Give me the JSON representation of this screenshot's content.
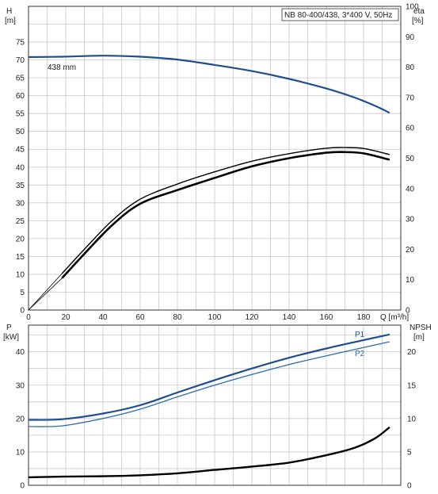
{
  "chart_data": [
    {
      "type": "line",
      "panel": "top",
      "title": "NB 80-400/438, 3*400 V, 50Hz",
      "ylabel_left": "H",
      "ylabel_left_unit": "[m]",
      "ylabel_right": "eta",
      "ylabel_right_unit": "[%]",
      "xlabel": "Q [m³/h]",
      "xlim": [
        0,
        200
      ],
      "ylim_left": [
        0,
        85
      ],
      "ylim_right": [
        0,
        100
      ],
      "x_ticks": [
        0,
        20,
        40,
        60,
        80,
        100,
        120,
        140,
        160,
        180
      ],
      "y_ticks_left": [
        0,
        5,
        10,
        15,
        20,
        25,
        30,
        35,
        40,
        45,
        50,
        55,
        60,
        65,
        70,
        75
      ],
      "y_ticks_right": [
        0,
        10,
        20,
        30,
        40,
        50,
        60,
        70,
        80,
        90,
        100
      ],
      "grid": true,
      "annotation": "438 mm",
      "series": [
        {
          "role": "head",
          "axis": "left",
          "color": "#1f4e8c",
          "x": [
            0,
            18,
            40,
            60,
            80,
            100,
            120,
            140,
            160,
            175,
            186,
            194
          ],
          "y": [
            70.8,
            70.9,
            71.2,
            70.9,
            70.1,
            68.6,
            66.9,
            64.7,
            62.0,
            59.5,
            57.2,
            55.2
          ]
        },
        {
          "role": "efficiency",
          "axis": "right",
          "color": "#000000",
          "x": [
            18,
            30,
            45,
            60,
            80,
            100,
            120,
            140,
            160,
            170,
            180,
            194
          ],
          "y": [
            10.5,
            18.5,
            28.0,
            35.0,
            39.5,
            43.5,
            47.3,
            50.0,
            51.8,
            52.0,
            51.6,
            49.5
          ]
        },
        {
          "role": "efficiency",
          "axis": "right",
          "color": "#000000",
          "x": [
            18,
            30,
            45,
            60,
            80,
            100,
            120,
            140,
            160,
            170,
            180,
            194
          ],
          "y": [
            12.0,
            20.0,
            29.5,
            36.5,
            41.5,
            45.5,
            49.0,
            51.5,
            53.3,
            53.5,
            53.2,
            51.2
          ]
        }
      ]
    },
    {
      "type": "line",
      "panel": "bottom",
      "ylabel_left": "P",
      "ylabel_left_unit": "[kW]",
      "ylabel_right": "NPSH",
      "ylabel_right_unit": "[m]",
      "xlim": [
        0,
        200
      ],
      "ylim_left": [
        0,
        48
      ],
      "ylim_right": [
        0,
        24
      ],
      "y_ticks_left": [
        0,
        10,
        20,
        30,
        40
      ],
      "y_ticks_right": [
        0,
        5,
        10,
        15,
        20
      ],
      "grid": true,
      "series": [
        {
          "name": "P1",
          "axis": "left",
          "color": "#1f4e8c",
          "x": [
            0,
            18,
            40,
            60,
            80,
            100,
            120,
            140,
            160,
            180,
            194
          ],
          "y": [
            19.6,
            19.8,
            21.5,
            24.0,
            27.8,
            31.5,
            35.0,
            38.2,
            41.0,
            43.5,
            45.2
          ]
        },
        {
          "name": "P2",
          "axis": "left",
          "color": "#2b6cb0",
          "x": [
            0,
            18,
            40,
            60,
            80,
            100,
            120,
            140,
            160,
            180,
            194
          ],
          "y": [
            17.6,
            17.8,
            20.0,
            22.8,
            26.5,
            30.0,
            33.2,
            36.2,
            38.8,
            41.3,
            43.0
          ]
        },
        {
          "role": "npsh",
          "axis": "right",
          "color": "#000000",
          "x": [
            0,
            18,
            40,
            60,
            80,
            100,
            120,
            140,
            160,
            175,
            186,
            194
          ],
          "y": [
            1.2,
            1.3,
            1.35,
            1.5,
            1.8,
            2.3,
            2.8,
            3.4,
            4.5,
            5.6,
            7.0,
            8.7
          ]
        }
      ]
    }
  ]
}
